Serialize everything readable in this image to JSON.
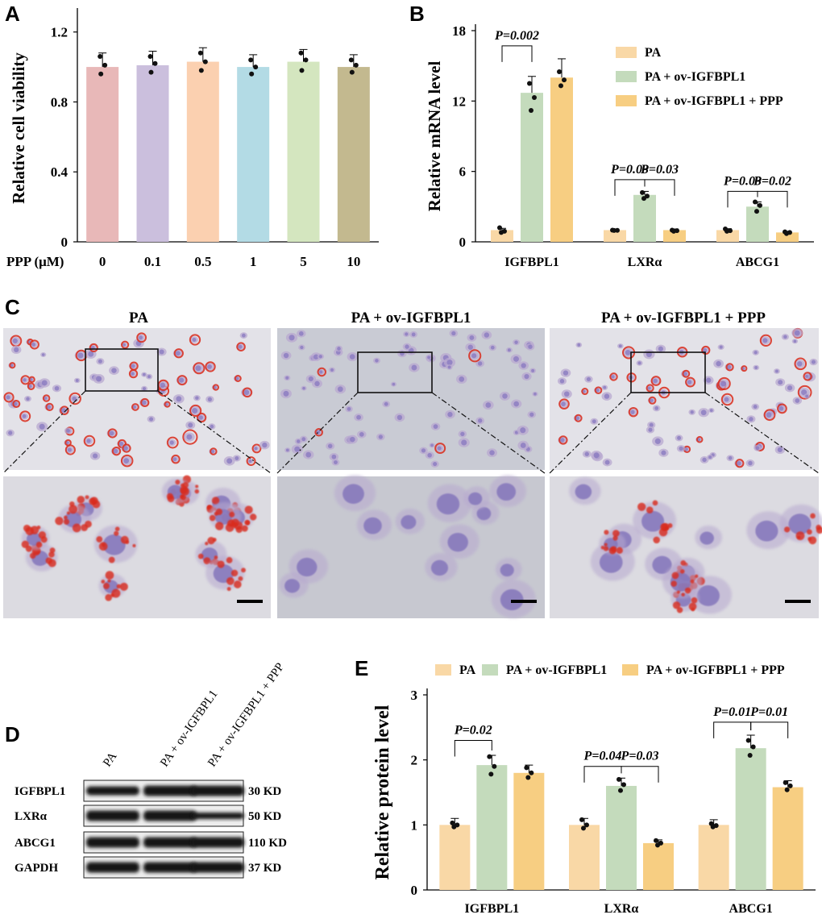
{
  "panels": {
    "A": {
      "letter": "A"
    },
    "B": {
      "letter": "B"
    },
    "C": {
      "letter": "C"
    },
    "D": {
      "letter": "D"
    },
    "E": {
      "letter": "E"
    }
  },
  "colors": {
    "PA": "#f9d8a6",
    "PA_ov": "#c4dbbc",
    "PA_ov_ppp": "#f7ce82",
    "A_bars": [
      "#e8b8b8",
      "#cbbfdd",
      "#fbd0b0",
      "#b3dbe5",
      "#d4e6bf",
      "#c3b98f"
    ],
    "cell_stain": "#d92a1a",
    "nucleus": "#8a7ac0"
  },
  "chart_data": [
    {
      "id": "A",
      "type": "bar",
      "xlabel": "PPP (μM)",
      "ylabel": "Relative cell viability",
      "categories": [
        "0",
        "0.1",
        "0.5",
        "1",
        "5",
        "10"
      ],
      "values": [
        1.0,
        1.01,
        1.03,
        1.0,
        1.03,
        1.0
      ],
      "errors": [
        0.08,
        0.08,
        0.08,
        0.07,
        0.07,
        0.07
      ],
      "points": [
        [
          1.06,
          1.01,
          0.96
        ],
        [
          1.06,
          1.02,
          0.97
        ],
        [
          1.08,
          1.03,
          0.98
        ],
        [
          1.04,
          1.0,
          0.96
        ],
        [
          1.08,
          1.04,
          0.98
        ],
        [
          1.04,
          1.01,
          0.97
        ]
      ],
      "ylim": [
        0,
        1.3
      ],
      "yticks": [
        "0",
        "0.4",
        "0.8",
        "1.2"
      ],
      "ytick_values": [
        0,
        0.4,
        0.8,
        1.2
      ]
    },
    {
      "id": "B",
      "type": "bar",
      "ylabel": "Relative mRNA level",
      "categories": [
        "IGFBPL1",
        "LXRα",
        "ABCG1"
      ],
      "legend": [
        "PA",
        "PA + ov-IGFBPL1",
        "PA + ov-IGFBPL1 + PPP"
      ],
      "series": [
        {
          "name": "PA",
          "values": [
            1.0,
            1.0,
            1.0
          ],
          "errors": [
            0.15,
            0.1,
            0.12
          ],
          "points": [
            [
              1.2,
              0.9,
              0.8
            ],
            [
              1.0,
              0.98,
              0.97
            ],
            [
              1.1,
              0.95,
              0.9
            ]
          ]
        },
        {
          "name": "PA + ov-IGFBPL1",
          "values": [
            12.7,
            4.0,
            3.0
          ],
          "errors": [
            1.4,
            0.3,
            0.4
          ],
          "points": [
            [
              13.5,
              12.3,
              11.2
            ],
            [
              4.2,
              3.9,
              3.7
            ],
            [
              3.4,
              3.1,
              2.6
            ]
          ]
        },
        {
          "name": "PA + ov-IGFBPL1 + PPP",
          "values": [
            14.0,
            1.0,
            0.8
          ],
          "errors": [
            1.6,
            0.1,
            0.1
          ],
          "points": [
            [
              14.5,
              13.8,
              13.3
            ],
            [
              1.0,
              0.95,
              0.9
            ],
            [
              0.85,
              0.8,
              0.7
            ]
          ]
        }
      ],
      "ylim": [
        0,
        18
      ],
      "yticks": [
        "0",
        "6",
        "12",
        "18"
      ],
      "ytick_values": [
        0,
        6,
        12,
        18
      ],
      "annotations": [
        {
          "group": 0,
          "from": 0,
          "to": 1,
          "y": 16.7,
          "text": "P=0.002"
        },
        {
          "group": 1,
          "from": 0,
          "to": 1,
          "y": 5.3,
          "text": "P=0.03"
        },
        {
          "group": 1,
          "from": 1,
          "to": 2,
          "y": 5.3,
          "text": "P=0.03"
        },
        {
          "group": 2,
          "from": 0,
          "to": 1,
          "y": 4.3,
          "text": "P=0.03"
        },
        {
          "group": 2,
          "from": 1,
          "to": 2,
          "y": 4.3,
          "text": "P=0.02"
        }
      ]
    },
    {
      "id": "E",
      "type": "bar",
      "ylabel": "Relative protein level",
      "categories": [
        "IGFBPL1",
        "LXRα",
        "ABCG1"
      ],
      "legend": [
        "PA",
        "PA + ov-IGFBPL1",
        "PA + ov-IGFBPL1 + PPP"
      ],
      "series": [
        {
          "name": "PA",
          "values": [
            1.0,
            1.0,
            1.0
          ],
          "errors": [
            0.1,
            0.1,
            0.08
          ],
          "points": [
            [
              1.03,
              1.0,
              0.97
            ],
            [
              1.08,
              1.0,
              0.95
            ],
            [
              1.02,
              0.99,
              0.97
            ]
          ]
        },
        {
          "name": "PA + ov-IGFBPL1",
          "values": [
            1.92,
            1.6,
            2.18
          ],
          "errors": [
            0.15,
            0.12,
            0.2
          ],
          "points": [
            [
              2.05,
              1.9,
              1.78
            ],
            [
              1.7,
              1.62,
              1.53
            ],
            [
              2.3,
              2.2,
              2.07
            ]
          ]
        },
        {
          "name": "PA + ov-IGFBPL1 + PPP",
          "values": [
            1.8,
            0.72,
            1.58
          ],
          "errors": [
            0.12,
            0.05,
            0.1
          ],
          "points": [
            [
              1.88,
              1.8,
              1.73
            ],
            [
              0.76,
              0.72,
              0.69
            ],
            [
              1.65,
              1.6,
              1.54
            ]
          ]
        }
      ],
      "ylim": [
        0,
        3
      ],
      "yticks": [
        "0",
        "1",
        "2",
        "3"
      ],
      "ytick_values": [
        0,
        1,
        2,
        3
      ],
      "annotations": [
        {
          "group": 0,
          "from": 0,
          "to": 1,
          "y": 2.3,
          "text": "P=0.02"
        },
        {
          "group": 1,
          "from": 0,
          "to": 1,
          "y": 1.9,
          "text": "P=0.04"
        },
        {
          "group": 1,
          "from": 1,
          "to": 2,
          "y": 1.9,
          "text": "P=0.03"
        },
        {
          "group": 2,
          "from": 0,
          "to": 1,
          "y": 2.58,
          "text": "P=0.01"
        },
        {
          "group": 2,
          "from": 1,
          "to": 2,
          "y": 2.58,
          "text": "P=0.01"
        }
      ]
    }
  ],
  "micrographs": {
    "titles": [
      "PA",
      "PA + ov-IGFBPL1",
      "PA + ov-IGFBPL1 + PPP"
    ]
  },
  "western_blot": {
    "lane_labels": [
      "PA",
      "PA + ov-IGFBPL1",
      "PA + ov-IGFBPL1 + PPP"
    ],
    "rows": [
      {
        "protein": "IGFBPL1",
        "size": "30 KD"
      },
      {
        "protein": "LXRα",
        "size": "50 KD"
      },
      {
        "protein": "ABCG1",
        "size": "110 KD"
      },
      {
        "protein": "GAPDH",
        "size": "37 KD"
      }
    ]
  }
}
